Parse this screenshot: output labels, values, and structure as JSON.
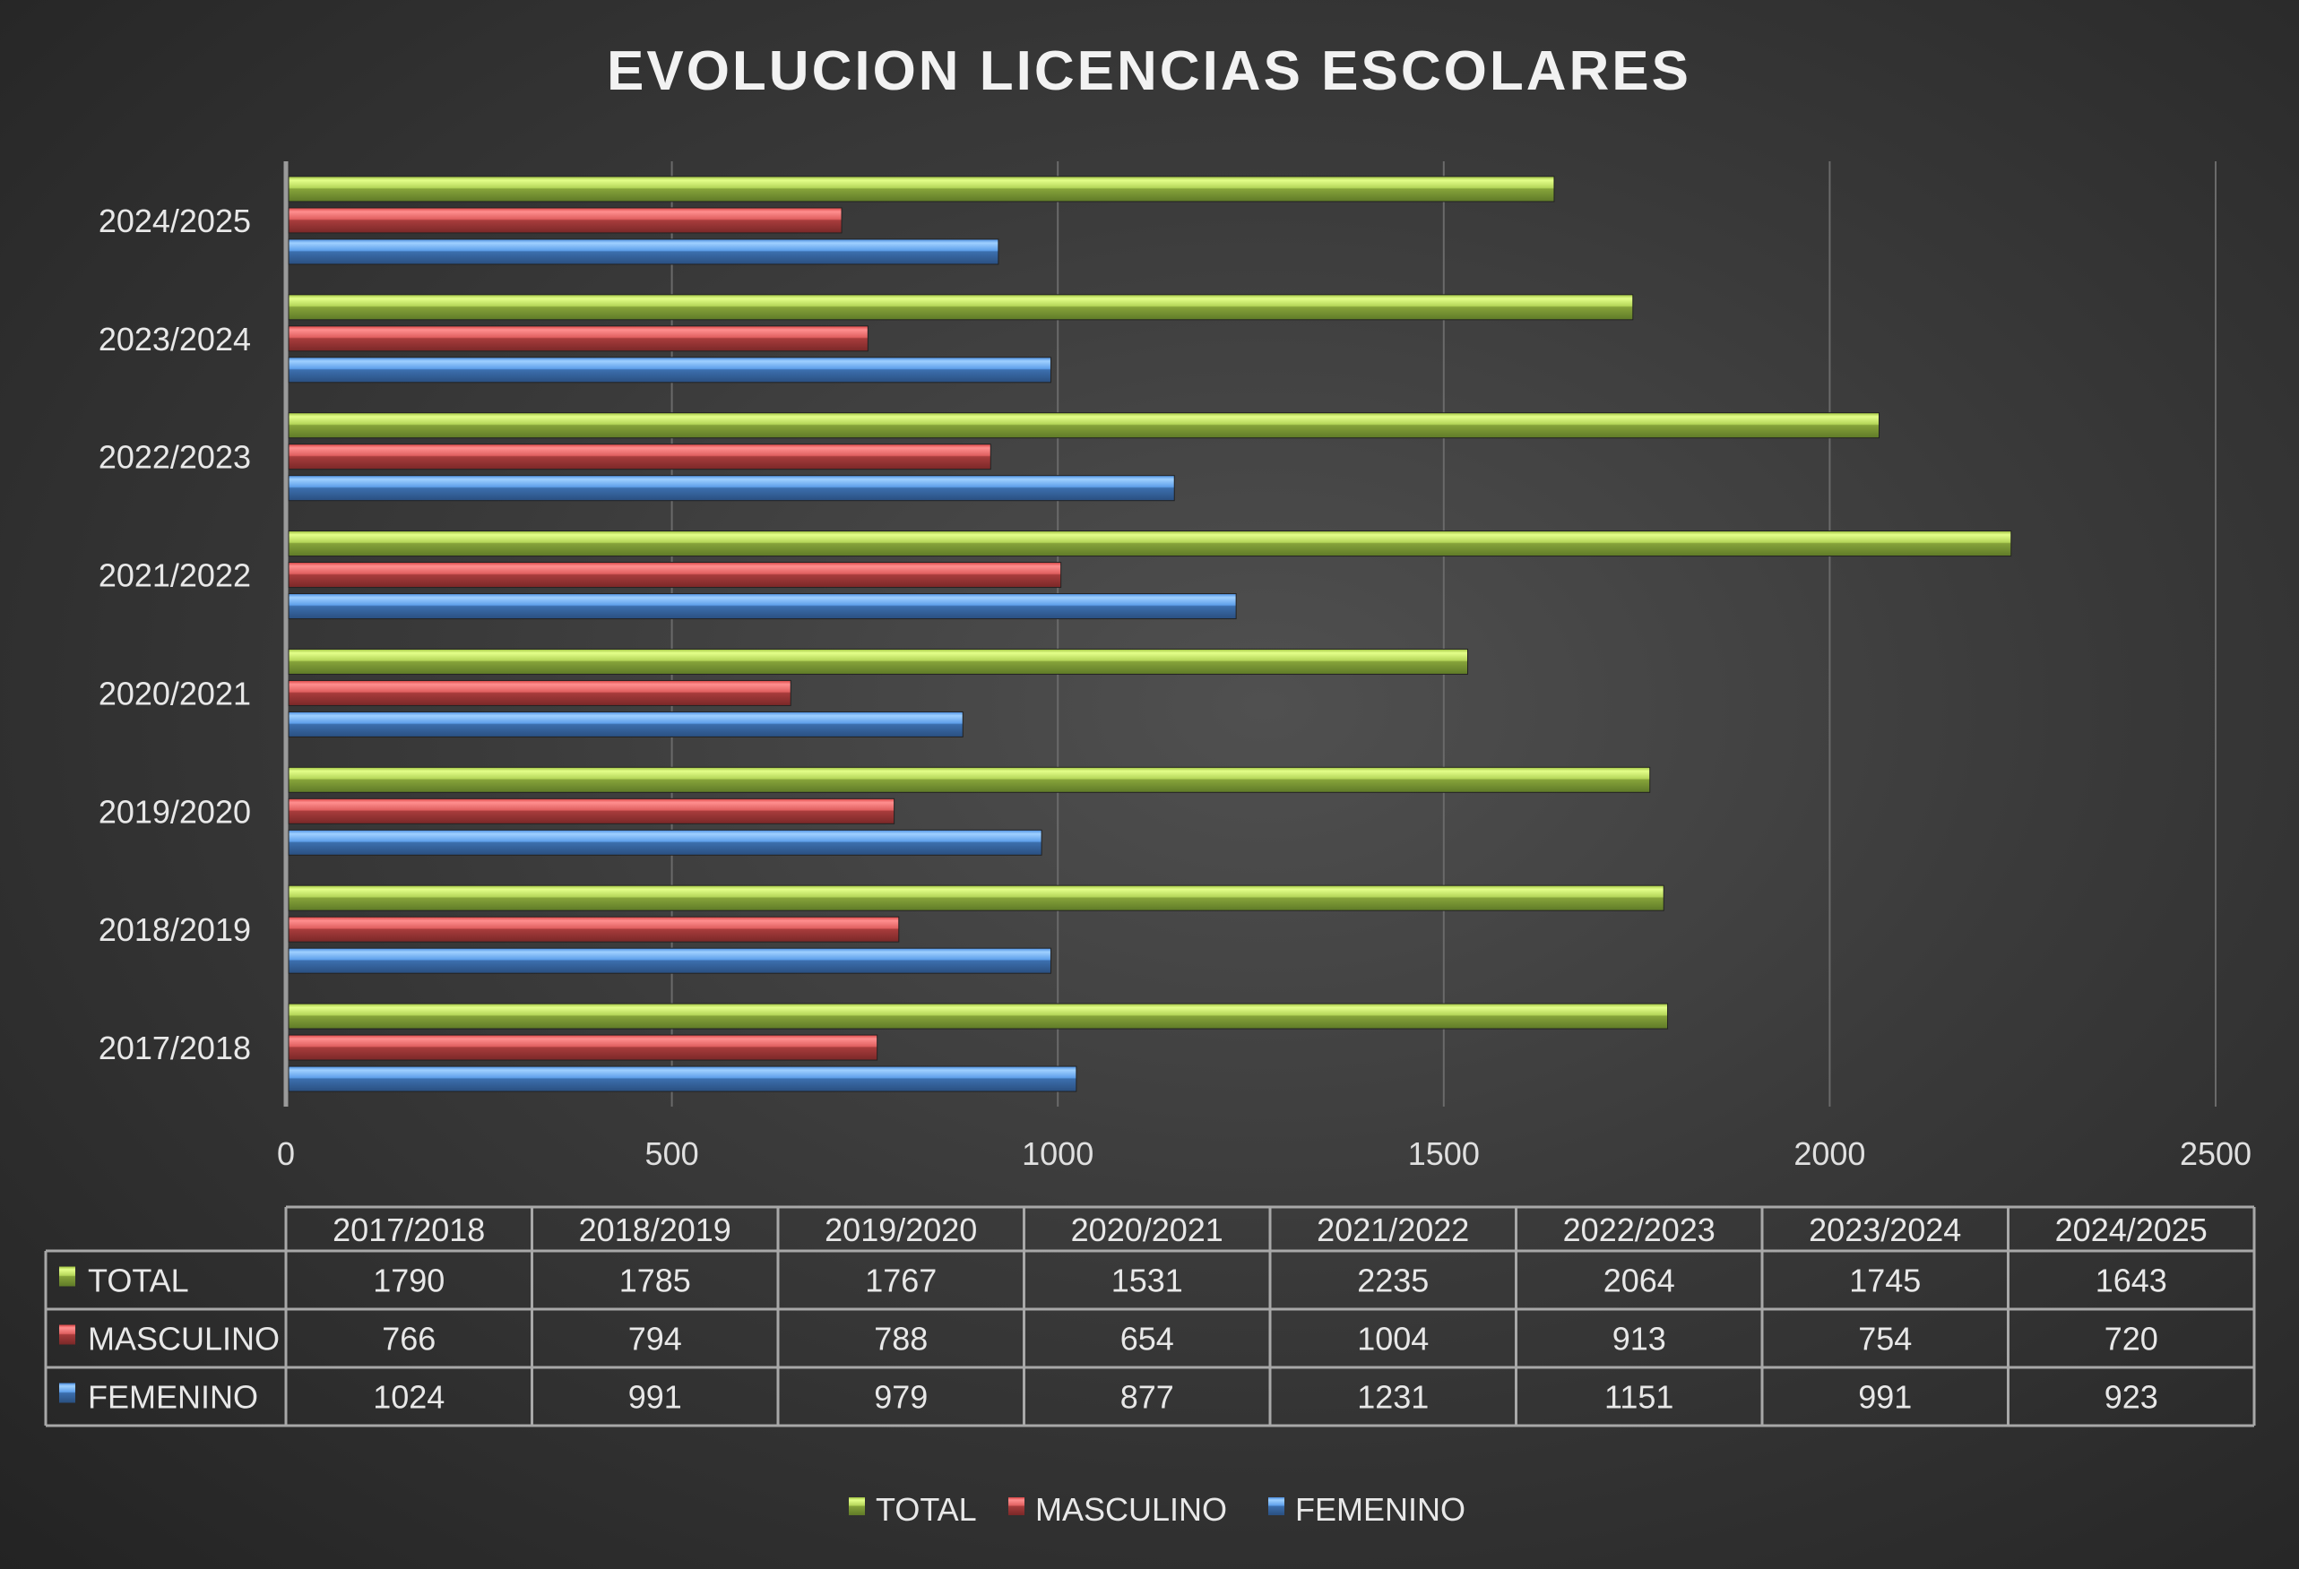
{
  "chart_data": {
    "type": "bar",
    "orientation": "horizontal",
    "title": "EVOLUCION LICENCIAS ESCOLARES",
    "categories": [
      "2017/2018",
      "2018/2019",
      "2019/2020",
      "2020/2021",
      "2021/2022",
      "2022/2023",
      "2023/2024",
      "2024/2025"
    ],
    "series": [
      {
        "name": "TOTAL",
        "color": "#9bbb3b",
        "values": [
          1790,
          1785,
          1767,
          1531,
          2235,
          2064,
          1745,
          1643
        ]
      },
      {
        "name": "MASCULINO",
        "color": "#c0393b",
        "values": [
          766,
          794,
          788,
          654,
          1004,
          913,
          754,
          720
        ]
      },
      {
        "name": "FEMENINO",
        "color": "#3d7cc9",
        "values": [
          1024,
          991,
          979,
          877,
          1231,
          1151,
          991,
          923
        ]
      }
    ],
    "xlim": [
      0,
      2500
    ],
    "xticks": [
      0,
      500,
      1000,
      1500,
      2000,
      2500
    ],
    "grid": true,
    "data_table": true,
    "legend": "bottom"
  }
}
